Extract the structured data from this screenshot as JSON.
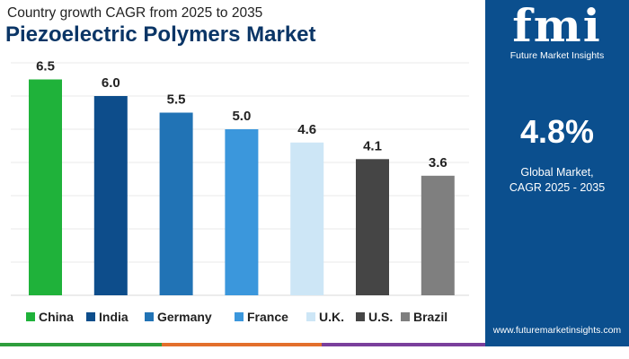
{
  "header": {
    "subtitle": "Country growth CAGR from 2025 to 2035",
    "title": "Piezoelectric Polymers Market"
  },
  "side_panel": {
    "logo_mark": "fmi",
    "logo_text": "Future Market Insights",
    "cagr_value": "4.8%",
    "cagr_label_line1": "Global Market,",
    "cagr_label_line2": "CAGR 2025 - 2035",
    "website": "www.futuremarketinsights.com",
    "background_color": "#0b4f8e"
  },
  "footer_colors": [
    "#2e9e3c",
    "#e36f2c",
    "#7a3f9c",
    "#0b4f8e"
  ],
  "chart_data": {
    "type": "bar",
    "title": "Piezoelectric Polymers Market",
    "subtitle": "Country growth CAGR from 2025 to 2035",
    "xlabel": "",
    "ylabel": "",
    "ylim": [
      0,
      7
    ],
    "grid": true,
    "legend_position": "bottom",
    "categories": [
      "China",
      "India",
      "Germany",
      "France",
      "U.K.",
      "U.S.",
      "Brazil"
    ],
    "values": [
      6.5,
      6.0,
      5.5,
      5.0,
      4.6,
      4.1,
      3.6
    ],
    "value_labels": [
      "6.5",
      "6.0",
      "5.5",
      "5.0",
      "4.6",
      "4.1",
      "3.6"
    ],
    "colors": [
      "#1fb23a",
      "#0d4d8b",
      "#2173b5",
      "#3b97dc",
      "#cde6f6",
      "#454545",
      "#7f7f7f"
    ]
  }
}
